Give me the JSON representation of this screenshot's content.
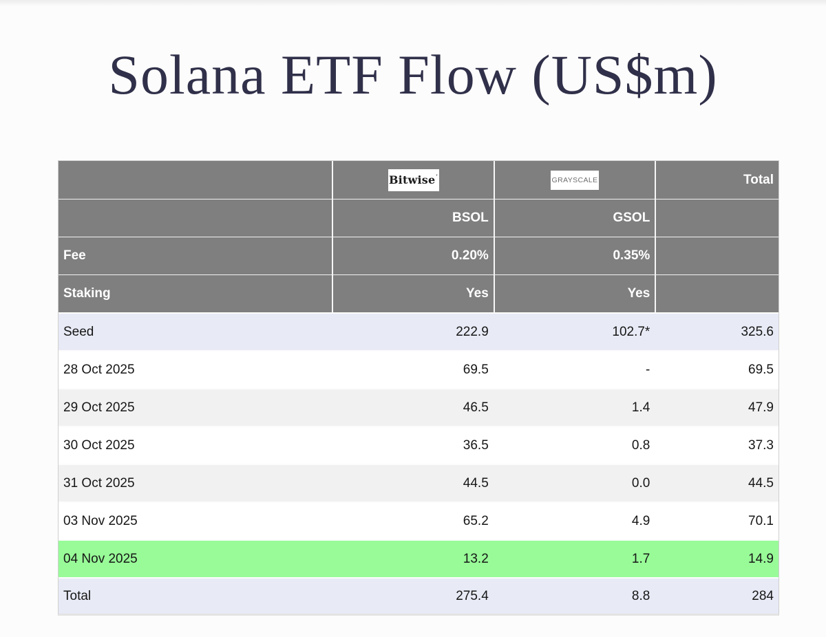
{
  "page": {
    "title": "Solana ETF Flow (US$m)"
  },
  "table": {
    "header": {
      "bitwise_logo": "Bitwise",
      "bitwise_mark": "’",
      "grayscale_logo": "GRAYSCALE",
      "total_label": "Total",
      "bsol": "BSOL",
      "gsol": "GSOL"
    },
    "meta_rows": [
      {
        "label": "Fee",
        "bsol": "0.20%",
        "gsol": "0.35%"
      },
      {
        "label": "Staking",
        "bsol": "Yes",
        "gsol": "Yes"
      }
    ],
    "data_rows": [
      {
        "label": "Seed",
        "bsol": "222.9",
        "gsol": "102.7*",
        "total": "325.6"
      },
      {
        "label": "28 Oct 2025",
        "bsol": "69.5",
        "gsol": "-",
        "total": "69.5"
      },
      {
        "label": "29 Oct 2025",
        "bsol": "46.5",
        "gsol": "1.4",
        "total": "47.9"
      },
      {
        "label": "30 Oct 2025",
        "bsol": "36.5",
        "gsol": "0.8",
        "total": "37.3"
      },
      {
        "label": "31 Oct 2025",
        "bsol": "44.5",
        "gsol": "0.0",
        "total": "44.5"
      },
      {
        "label": "03 Nov 2025",
        "bsol": "65.2",
        "gsol": "4.9",
        "total": "70.1"
      },
      {
        "label": "04 Nov 2025",
        "bsol": "13.2",
        "gsol": "1.7",
        "total": "14.9"
      },
      {
        "label": "Total",
        "bsol": "275.4",
        "gsol": "8.8",
        "total": "284"
      }
    ],
    "colors": {
      "header_bg": "#7f7f7f",
      "highlight_green": "#98fb98",
      "lavender_row": "#e8ebf6",
      "stripe_gray_row": "#f1f1f1",
      "title_text": "#30304a"
    }
  }
}
